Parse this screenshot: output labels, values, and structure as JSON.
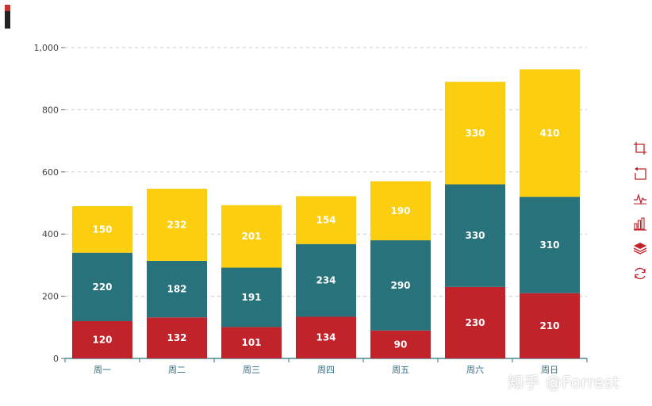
{
  "chart_data": {
    "type": "bar",
    "stacked": true,
    "categories": [
      "周一",
      "周二",
      "周三",
      "周四",
      "周五",
      "周六",
      "周日"
    ],
    "series": [
      {
        "values": [
          120,
          132,
          101,
          134,
          90,
          230,
          210
        ],
        "color": "#c1232b"
      },
      {
        "values": [
          220,
          182,
          191,
          234,
          290,
          330,
          310
        ],
        "color": "#27727b"
      },
      {
        "values": [
          150,
          232,
          201,
          154,
          190,
          330,
          410
        ],
        "color": "#fcce10"
      }
    ],
    "ylim": [
      0,
      1000
    ],
    "yticks": [
      "0",
      "200",
      "400",
      "600",
      "800",
      "1,000"
    ],
    "grid": "horizontal-dashed",
    "data_labels": true
  },
  "toolbox": {
    "color": "#c1232b",
    "icons": [
      "crop-zoom-icon",
      "zoom-reset-icon",
      "line-chart-icon",
      "bar-chart-icon",
      "stack-icon",
      "refresh-icon"
    ]
  },
  "watermark": "知乎 @Forrest"
}
